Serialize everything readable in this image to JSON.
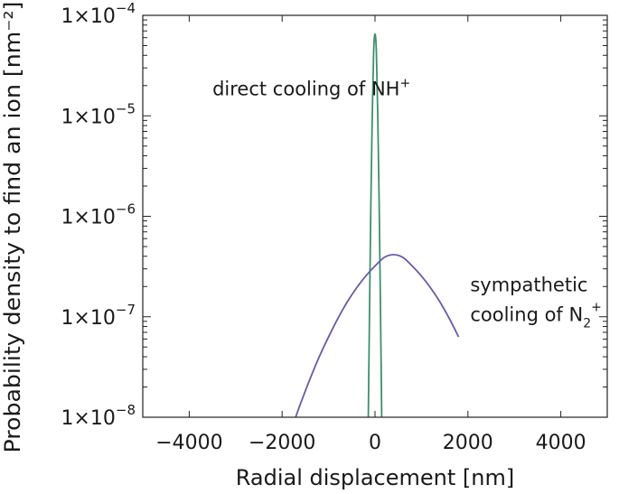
{
  "chart_data": {
    "type": "line",
    "title": "",
    "xlabel": "Radial displacement [nm]",
    "ylabel": "Probability density to find an ion [nm⁻²]",
    "xlim": [
      -5000,
      5000
    ],
    "ylim": [
      1e-08,
      0.0001
    ],
    "yscale": "log",
    "x_ticks": [
      -4000,
      -2000,
      0,
      2000,
      4000
    ],
    "x_tick_labels": [
      "−4000",
      "−2000",
      "0",
      "2000",
      "4000"
    ],
    "y_ticks": [
      1e-08,
      1e-07,
      1e-06,
      1e-05,
      0.0001
    ],
    "y_tick_labels": [
      {
        "base": "1×10",
        "exp": "−8"
      },
      {
        "base": "1×10",
        "exp": "−7"
      },
      {
        "base": "1×10",
        "exp": "−6"
      },
      {
        "base": "1×10",
        "exp": "−5"
      },
      {
        "base": "1×10",
        "exp": "−4"
      }
    ],
    "grid": false,
    "legend": "none",
    "series": [
      {
        "color": "#3f8f6e",
        "x": [
          -150,
          -120,
          -90,
          -60,
          -30,
          0,
          30,
          60,
          90,
          120,
          150
        ],
        "y": [
          6e-09,
          9.8e-08,
          1.27e-06,
          9.8e-06,
          4.24e-05,
          6.5e-05,
          4.24e-05,
          9.8e-06,
          1.27e-06,
          9.8e-08,
          6e-09
        ]
      },
      {
        "color": "#6a5aa8",
        "x": [
          -1800,
          -1600,
          -1400,
          -1200,
          -1000,
          -800,
          -600,
          -400,
          -200,
          0,
          200,
          400,
          600,
          800,
          1000,
          1200,
          1400,
          1600,
          1800
        ],
        "y": [
          7.6e-09,
          1.38e-08,
          2.4e-08,
          4e-08,
          6.3e-08,
          9.6e-08,
          1.4e-07,
          1.93e-07,
          2.54e-07,
          3.2e-07,
          3.9e-07,
          4.15e-07,
          3.9e-07,
          3.2e-07,
          2.54e-07,
          1.93e-07,
          1.4e-07,
          9.6e-08,
          6.3e-08
        ]
      }
    ],
    "annotations": [
      {
        "base": "direct cooling of NH",
        "sup": "+",
        "x": -3500,
        "y": 1.6e-05
      },
      {
        "line1": "sympathetic",
        "base": "cooling of N",
        "sub": "2",
        "sup": "+",
        "x": 2050,
        "y": 1.8e-07
      }
    ]
  }
}
